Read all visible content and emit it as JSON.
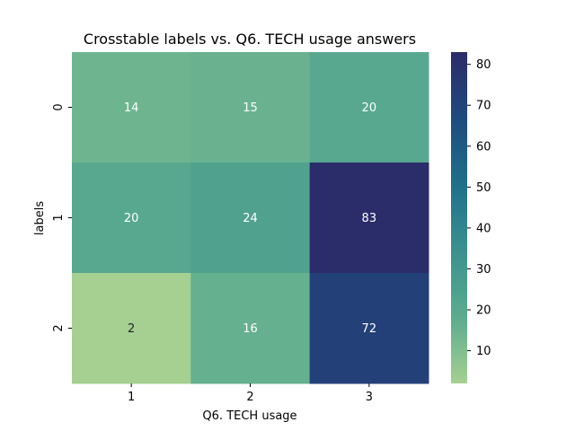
{
  "chart_data": {
    "type": "heatmap",
    "title": "Crosstable labels vs. Q6. TECH usage answers",
    "xlabel": "Q6. TECH usage",
    "ylabel": "labels",
    "x_categories": [
      "1",
      "2",
      "3"
    ],
    "y_categories": [
      "0",
      "1",
      "2"
    ],
    "values": [
      [
        14,
        15,
        20
      ],
      [
        20,
        24,
        83
      ],
      [
        2,
        16,
        72
      ]
    ],
    "colorbar": {
      "min": 2,
      "max": 83,
      "ticks": [
        10,
        20,
        30,
        40,
        50,
        60,
        70,
        80
      ]
    },
    "colormap": [
      "#a5d091",
      "#5bab8e",
      "#3b918f",
      "#1f6f8b",
      "#1f4a7e",
      "#2b2c6a"
    ],
    "annotation_colors": {
      "dark": "#262626",
      "light": "#ffffff"
    }
  }
}
